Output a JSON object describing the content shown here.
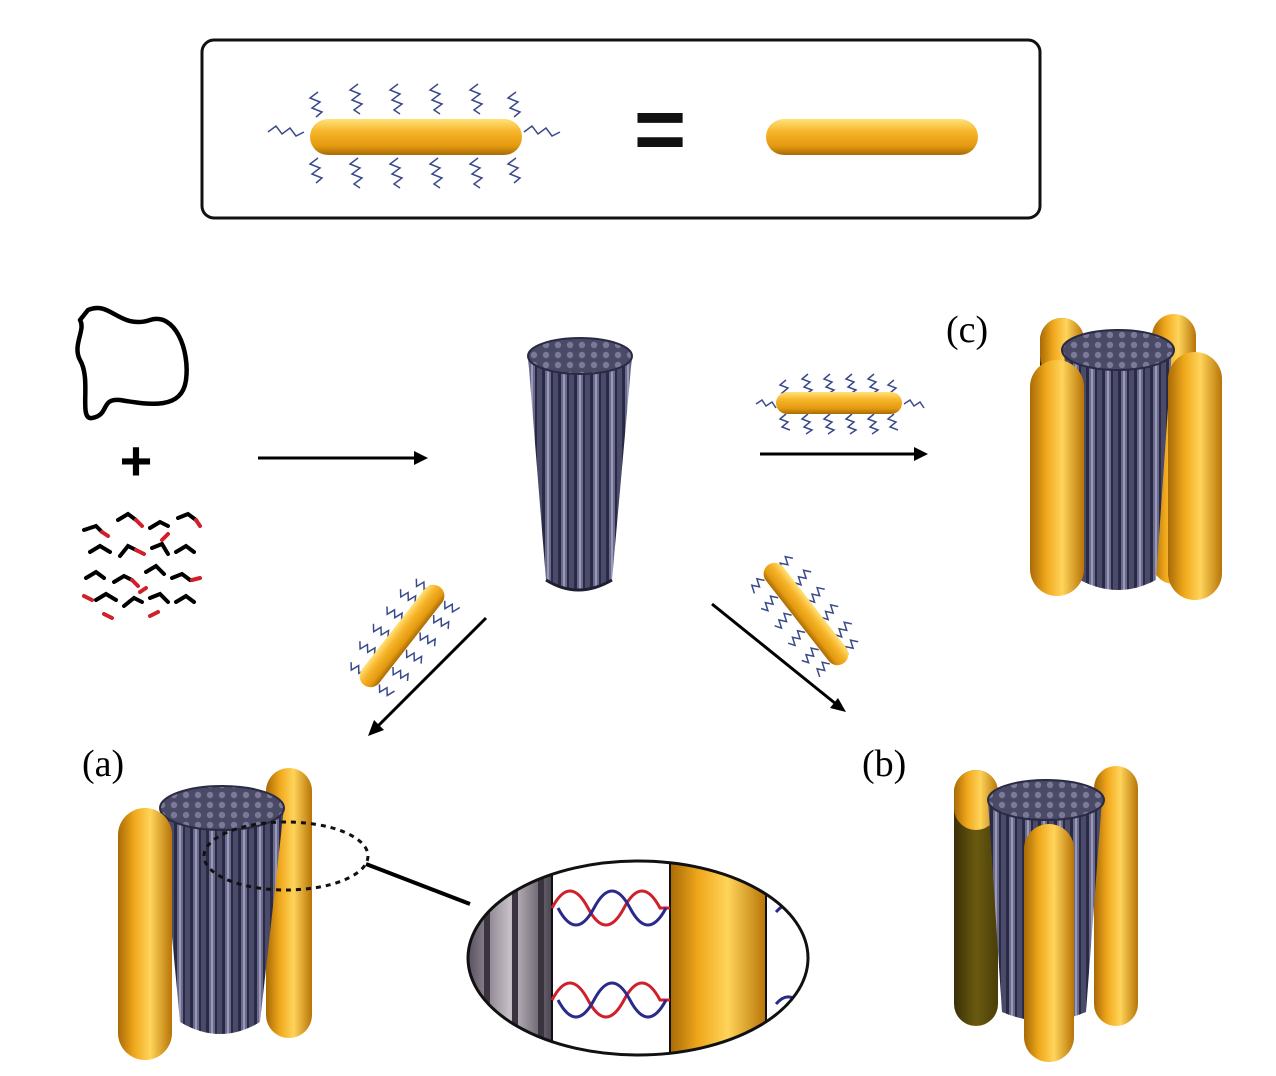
{
  "labels": {
    "a": "(a)",
    "b": "(b)",
    "c": "(c)",
    "equals": "=",
    "plus": "+"
  },
  "colors": {
    "gold": "#f2a81c",
    "gold_dark": "#b87406",
    "gold_light": "#ffd86a",
    "cylinder": "#4a4a6a",
    "cylinder_dark": "#1f1f33",
    "cylinder_light": "#8a8aa8",
    "ligand": "#3a4a8a",
    "dna_red": "#d0202a",
    "dna_blue": "#2a2a8a",
    "polymer_red": "#d0202a"
  },
  "icons": {
    "polymer_coil": "polymer-coil-icon",
    "amphiphiles": "amphiphile-molecules-icon",
    "micelle": "cylindrical-micelle-icon",
    "nanorod": "gold-nanorod-icon"
  }
}
